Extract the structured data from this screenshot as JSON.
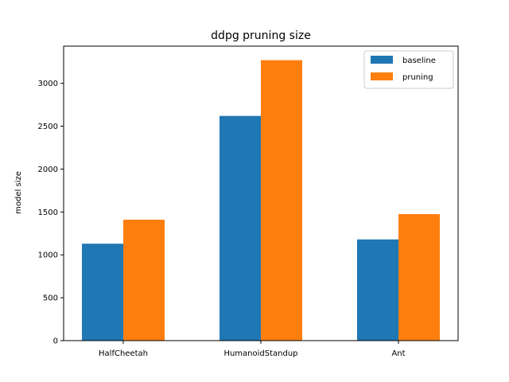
{
  "chart_data": {
    "type": "bar",
    "title": "ddpg pruning size",
    "xlabel": "",
    "ylabel": "model size",
    "categories": [
      "HalfCheetah",
      "HumanoidStandup",
      "Ant"
    ],
    "series": [
      {
        "name": "baseline",
        "values": [
          1130,
          2620,
          1180
        ],
        "color": "#1f77b4"
      },
      {
        "name": "pruning",
        "values": [
          1410,
          3270,
          1475
        ],
        "color": "#ff7f0e"
      }
    ],
    "yticks": [
      0,
      500,
      1000,
      1500,
      2000,
      2500,
      3000
    ],
    "ylim": [
      0,
      3433.5
    ],
    "grid": false,
    "legend": "top-right"
  }
}
